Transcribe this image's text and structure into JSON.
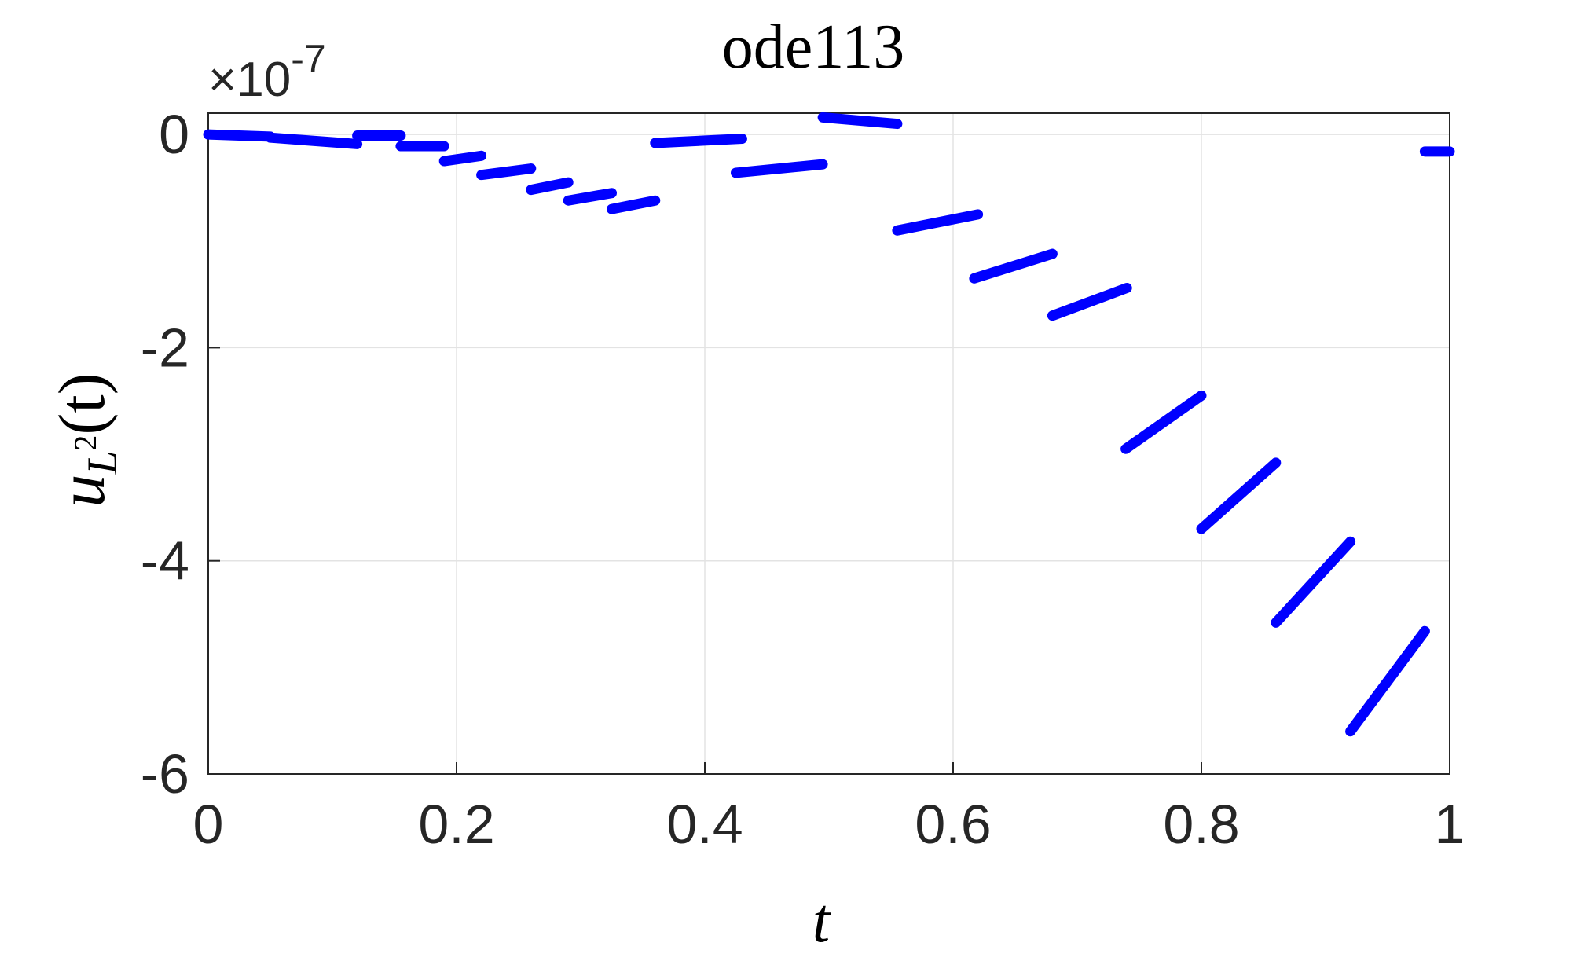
{
  "chart_data": {
    "type": "line",
    "title": "ode113",
    "xlabel": "t",
    "ylabel": {
      "base": "u",
      "sub": "L",
      "sup": "2",
      "arg": "(t)"
    },
    "y_multiplier": {
      "times": "×",
      "base": "10",
      "exponent": "-7"
    },
    "xlim": [
      0,
      1
    ],
    "ylim": [
      -6,
      0.2
    ],
    "x_ticks": [
      0,
      0.2,
      0.4,
      0.6,
      0.8,
      1
    ],
    "x_tick_labels": [
      "0",
      "0.2",
      "0.4",
      "0.6",
      "0.8",
      "1"
    ],
    "y_ticks": [
      0,
      -2,
      -4,
      -6
    ],
    "y_tick_labels": [
      "0",
      "-2",
      "-4",
      "-6"
    ],
    "grid": true,
    "color": "#0000ff",
    "segments": [
      {
        "x": [
          0.0,
          0.05
        ],
        "y": [
          0.0,
          -0.02
        ]
      },
      {
        "x": [
          0.05,
          0.12
        ],
        "y": [
          -0.03,
          -0.09
        ]
      },
      {
        "x": [
          0.12,
          0.155
        ],
        "y": [
          -0.01,
          -0.01
        ]
      },
      {
        "x": [
          0.155,
          0.19
        ],
        "y": [
          -0.11,
          -0.11
        ]
      },
      {
        "x": [
          0.19,
          0.22
        ],
        "y": [
          -0.25,
          -0.2
        ]
      },
      {
        "x": [
          0.22,
          0.26
        ],
        "y": [
          -0.38,
          -0.32
        ]
      },
      {
        "x": [
          0.26,
          0.29
        ],
        "y": [
          -0.52,
          -0.45
        ]
      },
      {
        "x": [
          0.29,
          0.325
        ],
        "y": [
          -0.62,
          -0.55
        ]
      },
      {
        "x": [
          0.325,
          0.36
        ],
        "y": [
          -0.7,
          -0.62
        ]
      },
      {
        "x": [
          0.36,
          0.43
        ],
        "y": [
          -0.08,
          -0.04
        ]
      },
      {
        "x": [
          0.425,
          0.495
        ],
        "y": [
          -0.36,
          -0.28
        ]
      },
      {
        "x": [
          0.495,
          0.555
        ],
        "y": [
          0.16,
          0.1
        ]
      },
      {
        "x": [
          0.555,
          0.62
        ],
        "y": [
          -0.9,
          -0.75
        ]
      },
      {
        "x": [
          0.617,
          0.68
        ],
        "y": [
          -1.35,
          -1.12
        ]
      },
      {
        "x": [
          0.68,
          0.74
        ],
        "y": [
          -1.7,
          -1.44
        ]
      },
      {
        "x": [
          0.739,
          0.8
        ],
        "y": [
          -2.95,
          -2.45
        ]
      },
      {
        "x": [
          0.8,
          0.86
        ],
        "y": [
          -3.7,
          -3.08
        ]
      },
      {
        "x": [
          0.86,
          0.92
        ],
        "y": [
          -4.58,
          -3.82
        ]
      },
      {
        "x": [
          0.92,
          0.98
        ],
        "y": [
          -5.6,
          -4.66
        ]
      },
      {
        "x": [
          0.98,
          1.0
        ],
        "y": [
          -0.16,
          -0.16
        ]
      }
    ]
  }
}
